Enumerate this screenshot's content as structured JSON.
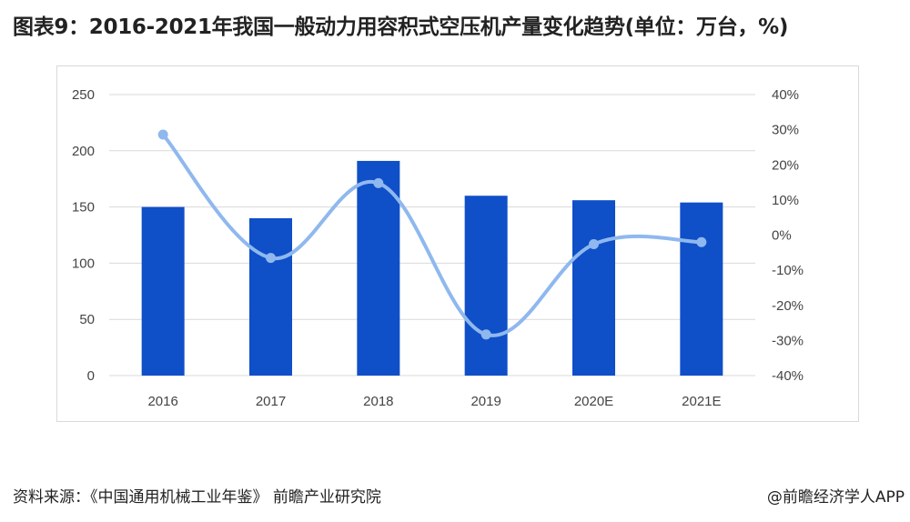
{
  "title": "图表9：2016-2021年我国一般动力用容积式空压机产量变化趋势(单位：万台，%)",
  "footer": {
    "source": "资料来源：《中国通用机械工业年鉴》 前瞻产业研究院",
    "brand": "@前瞻经济学人APP"
  },
  "colors": {
    "bar": "#0f4fc8",
    "line": "#8fb8ee",
    "grid": "#d9d9d9"
  },
  "chart_data": {
    "type": "bar",
    "categories": [
      "2016",
      "2017",
      "2018",
      "2019",
      "2020E",
      "2021E"
    ],
    "series": [
      {
        "type": "bar",
        "axis": "left",
        "values": [
          150,
          140,
          191,
          160,
          156,
          154
        ]
      },
      {
        "type": "line",
        "axis": "right",
        "values": [
          28.6,
          -6.5,
          14.8,
          -28.3,
          -2.6,
          -2.0
        ]
      }
    ],
    "yleft": {
      "lim": [
        0,
        250
      ],
      "ticks": [
        0,
        50,
        100,
        150,
        200,
        250
      ]
    },
    "yright": {
      "lim": [
        -40,
        40
      ],
      "ticks": [
        "-40%",
        "-30%",
        "-20%",
        "-10%",
        "0%",
        "10%",
        "20%",
        "30%",
        "40%"
      ]
    },
    "grid": true,
    "legend": "none"
  }
}
